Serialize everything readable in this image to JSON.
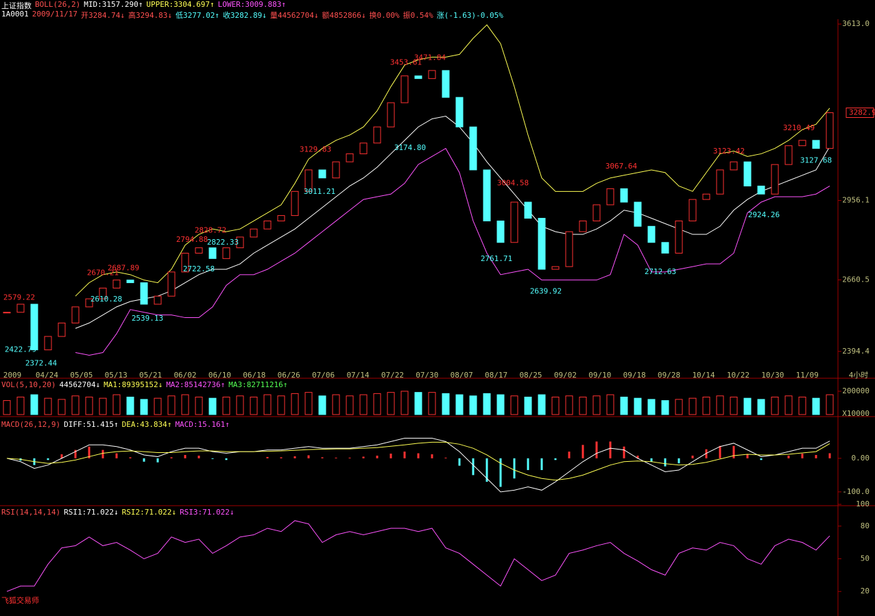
{
  "header": {
    "title": "上证指数",
    "indicator": "BOLL(26,2)",
    "mid": "MID:3157.290↑",
    "upper": "UPPER:3304.697↑",
    "lower": "LOWER:3009.883↑"
  },
  "quote": {
    "code": "1A0001",
    "date": "2009/11/17",
    "open": "开3284.74↓",
    "high": "高3294.83↓",
    "low": "低3277.02↑",
    "close": "收3282.89↓",
    "volume": "量44562704↓",
    "amount": "额4852866↓",
    "turnover": "换0.00%",
    "amplitude": "振0.54%",
    "change": "涨(-1.63)-0.05%"
  },
  "brand": "飞狐交易师",
  "chart_data": [
    {
      "type": "candlestick",
      "values": [
        2540,
        2570,
        2400,
        2450,
        2500,
        2560,
        2590,
        2630,
        2660,
        2650,
        2570,
        2600,
        2690,
        2760,
        2780,
        2740,
        2780,
        2820,
        2850,
        2880,
        2900,
        2990,
        3070,
        3040,
        3100,
        3130,
        3170,
        3230,
        3320,
        3420,
        3410,
        3440,
        3340,
        3230,
        3070,
        2880,
        2800,
        2950,
        2890,
        2700,
        2710,
        2840,
        2880,
        2940,
        3000,
        2950,
        2860,
        2800,
        2760,
        2880,
        2960,
        2980,
        3070,
        3100,
        3010,
        2980,
        3090,
        3160,
        3180,
        3150,
        3283
      ],
      "up_color": "#ff3232",
      "down_color": "#54ffff",
      "series": [
        {
          "color": "#ffff54",
          "values": [
            null,
            null,
            null,
            null,
            null,
            2600,
            2650,
            2680,
            2690,
            2680,
            2660,
            2650,
            2700,
            2790,
            2830,
            2850,
            2840,
            2850,
            2880,
            2910,
            2940,
            3020,
            3110,
            3150,
            3180,
            3200,
            3230,
            3290,
            3380,
            3460,
            3480,
            3490,
            3490,
            3500,
            3560,
            3610,
            3540,
            3380,
            3200,
            3040,
            2990,
            2990,
            2990,
            3020,
            3040,
            3050,
            3060,
            3070,
            3060,
            3010,
            2990,
            3060,
            3130,
            3140,
            3120,
            3130,
            3150,
            3180,
            3220,
            3240,
            3300
          ]
        },
        {
          "color": "#ffffff",
          "values": [
            null,
            null,
            null,
            null,
            null,
            2480,
            2500,
            2530,
            2560,
            2580,
            2590,
            2600,
            2620,
            2650,
            2680,
            2700,
            2700,
            2720,
            2760,
            2790,
            2820,
            2850,
            2890,
            2930,
            2970,
            3010,
            3040,
            3080,
            3130,
            3180,
            3230,
            3260,
            3270,
            3230,
            3170,
            3100,
            3040,
            2980,
            2920,
            2860,
            2840,
            2830,
            2830,
            2850,
            2880,
            2920,
            2910,
            2890,
            2870,
            2850,
            2830,
            2830,
            2860,
            2920,
            2960,
            2990,
            3010,
            3030,
            3050,
            3070,
            3157
          ]
        },
        {
          "color": "#ff54ff",
          "values": [
            null,
            null,
            null,
            null,
            null,
            2390,
            2380,
            2390,
            2460,
            2550,
            2540,
            2530,
            2530,
            2520,
            2520,
            2560,
            2640,
            2680,
            2680,
            2700,
            2730,
            2760,
            2800,
            2840,
            2880,
            2920,
            2960,
            2970,
            2980,
            3020,
            3090,
            3120,
            3150,
            3060,
            2880,
            2760,
            2680,
            2690,
            2700,
            2660,
            2660,
            2660,
            2660,
            2660,
            2680,
            2830,
            2790,
            2690,
            2690,
            2700,
            2710,
            2720,
            2720,
            2760,
            2910,
            2950,
            2970,
            2970,
            2970,
            2980,
            3010
          ]
        }
      ],
      "ylim": [
        2325,
        3626
      ],
      "yticks": [
        2394.4,
        2660.5,
        2956.1,
        {
          "value": 3613,
          "label": "3613.0"
        }
      ],
      "last_price": 3282.9,
      "x_labels": [
        "2009",
        "04/24",
        "05/05",
        "05/13",
        "05/21",
        "06/02",
        "06/10",
        "06/18",
        "06/26",
        "07/06",
        "07/14",
        "07/22",
        "07/30",
        "08/07",
        "08/17",
        "08/25",
        "09/02",
        "09/10",
        "09/18",
        "09/28",
        "10/14",
        "10/22",
        "10/30",
        "11/09"
      ],
      "period": "4小时",
      "annotations": [
        {
          "text": "2579.22",
          "kind": "high"
        },
        {
          "text": "2422.79",
          "kind": "low"
        },
        {
          "text": "2372.44",
          "kind": "low"
        },
        {
          "text": "2670.21",
          "kind": "high"
        },
        {
          "text": "2687.89",
          "kind": "high"
        },
        {
          "text": "2610.28",
          "kind": "low"
        },
        {
          "text": "2539.13",
          "kind": "low"
        },
        {
          "text": "2794.88",
          "kind": "high"
        },
        {
          "text": "2828.72",
          "kind": "high"
        },
        {
          "text": "2722.58",
          "kind": "low"
        },
        {
          "text": "2822.33",
          "kind": "low"
        },
        {
          "text": "3129.83",
          "kind": "high"
        },
        {
          "text": "3011.21",
          "kind": "low"
        },
        {
          "text": "3453.61",
          "kind": "high"
        },
        {
          "text": "3471.84",
          "kind": "high"
        },
        {
          "text": "3174.80",
          "kind": "low"
        },
        {
          "text": "3004.58",
          "kind": "high"
        },
        {
          "text": "2761.71",
          "kind": "low"
        },
        {
          "text": "2639.92",
          "kind": "low"
        },
        {
          "text": "3067.64",
          "kind": "high"
        },
        {
          "text": "2712.63",
          "kind": "low"
        },
        {
          "text": "3123.42",
          "kind": "high"
        },
        {
          "text": "2924.26",
          "kind": "low"
        },
        {
          "text": "3210.49",
          "kind": "high"
        },
        {
          "text": "3127.68",
          "kind": "low"
        }
      ]
    },
    {
      "type": "bar",
      "title": "VOL(5,10,20)",
      "legend": [
        "44562704↓",
        "MA1:89395152↓",
        "MA2:85142736↑",
        "MA3:82711216↑"
      ],
      "values": [
        120000,
        150000,
        170000,
        140000,
        130000,
        160000,
        150000,
        140000,
        170000,
        150000,
        130000,
        140000,
        160000,
        170000,
        150000,
        140000,
        150000,
        160000,
        150000,
        170000,
        160000,
        180000,
        190000,
        160000,
        170000,
        160000,
        170000,
        180000,
        190000,
        200000,
        190000,
        190000,
        180000,
        170000,
        160000,
        180000,
        170000,
        160000,
        150000,
        170000,
        150000,
        160000,
        150000,
        160000,
        170000,
        150000,
        140000,
        130000,
        120000,
        130000,
        140000,
        150000,
        160000,
        150000,
        140000,
        130000,
        150000,
        160000,
        150000,
        140000,
        170000
      ],
      "ylim": [
        0,
        235000
      ],
      "yticks": [
        200000
      ],
      "unit": "X10000"
    },
    {
      "type": "macd",
      "title": "MACD(26,12,9)",
      "legend": [
        "DIFF:51.415↑",
        "DEA:43.834↑",
        "MACD:15.161↑"
      ],
      "series": [
        {
          "color": "#ffffff",
          "values": [
            0,
            -10,
            -30,
            -20,
            0,
            20,
            40,
            40,
            35,
            25,
            10,
            5,
            20,
            30,
            30,
            20,
            15,
            20,
            20,
            25,
            25,
            30,
            35,
            30,
            30,
            30,
            35,
            40,
            50,
            60,
            60,
            60,
            50,
            20,
            -20,
            -60,
            -100,
            -95,
            -85,
            -95,
            -70,
            -40,
            -10,
            15,
            30,
            25,
            0,
            -20,
            -40,
            -35,
            -10,
            15,
            35,
            45,
            25,
            5,
            10,
            20,
            30,
            30,
            51.415
          ]
        },
        {
          "color": "#ffff54",
          "values": [
            0,
            -3,
            -10,
            -15,
            -12,
            -5,
            5,
            15,
            20,
            22,
            20,
            17,
            17,
            20,
            22,
            22,
            20,
            20,
            20,
            21,
            22,
            24,
            26,
            27,
            28,
            28,
            30,
            32,
            36,
            40,
            45,
            48,
            48,
            42,
            30,
            10,
            -15,
            -35,
            -50,
            -60,
            -65,
            -60,
            -50,
            -35,
            -20,
            -10,
            -8,
            -10,
            -16,
            -20,
            -18,
            -12,
            -2,
            8,
            12,
            10,
            10,
            12,
            16,
            20,
            43.834
          ]
        }
      ],
      "histogram": [
        0,
        -7,
        -20,
        -5,
        12,
        25,
        35,
        25,
        15,
        3,
        -10,
        -12,
        3,
        10,
        8,
        -2,
        -5,
        0,
        0,
        4,
        3,
        6,
        9,
        3,
        2,
        2,
        5,
        8,
        14,
        20,
        15,
        12,
        2,
        -22,
        -50,
        -70,
        -85,
        -60,
        -35,
        -35,
        -5,
        20,
        40,
        50,
        50,
        35,
        8,
        -10,
        -24,
        -15,
        8,
        27,
        37,
        37,
        13,
        -5,
        0,
        8,
        14,
        10,
        15.161
      ],
      "up_color": "#ff3232",
      "down_color": "#54ffff",
      "ylim": [
        -135,
        110
      ],
      "yticks": [
        {
          "value": 0,
          "label": "0.00"
        },
        {
          "value": -100,
          "label": "-100.0"
        }
      ]
    },
    {
      "type": "line",
      "title": "RSI(14,14,14)",
      "legend": [
        "RSI1:71.022↓",
        "RSI2:71.022↓",
        "RSI3:71.022↓"
      ],
      "series": [
        {
          "color": "#ff54ff",
          "values": [
            20,
            25,
            25,
            45,
            60,
            62,
            70,
            62,
            65,
            58,
            50,
            55,
            70,
            65,
            68,
            55,
            62,
            70,
            72,
            78,
            75,
            85,
            82,
            65,
            72,
            75,
            72,
            75,
            78,
            78,
            75,
            78,
            60,
            55,
            45,
            35,
            25,
            50,
            40,
            30,
            35,
            55,
            58,
            62,
            65,
            55,
            48,
            40,
            35,
            55,
            60,
            58,
            65,
            62,
            50,
            45,
            62,
            68,
            65,
            58,
            71.022
          ]
        }
      ],
      "ylim": [
        0,
        100
      ],
      "yticks": [
        20,
        50,
        80,
        100
      ]
    }
  ]
}
